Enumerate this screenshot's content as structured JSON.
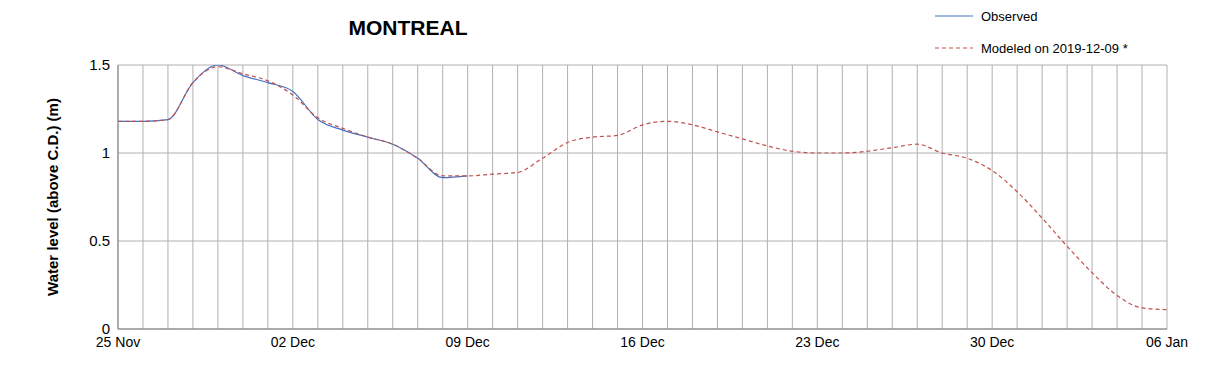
{
  "chart_data": {
    "type": "line",
    "title": "MONTREAL",
    "y_label": "Water level (above C.D.) (m)",
    "categories": [
      "25 Nov",
      null,
      null,
      null,
      null,
      null,
      null,
      "02 Dec",
      null,
      null,
      null,
      null,
      null,
      null,
      "09 Dec",
      null,
      null,
      null,
      null,
      null,
      null,
      "16 Dec",
      null,
      null,
      null,
      null,
      null,
      null,
      "23 Dec",
      null,
      null,
      null,
      null,
      null,
      null,
      "30 Dec",
      null,
      null,
      null,
      null,
      null,
      null,
      "06 Jan"
    ],
    "series": [
      {
        "name": "Observed",
        "color": "#4472c4",
        "line_style": "solid",
        "marker": "none",
        "values": [
          1.18,
          1.18,
          1.19,
          1.4,
          1.5,
          1.44,
          1.4,
          1.35,
          1.19,
          1.13,
          1.09,
          1.05,
          0.97,
          0.86,
          0.87,
          null,
          null,
          null,
          null,
          null,
          null,
          null,
          null,
          null,
          null,
          null,
          null,
          null,
          null,
          null,
          null,
          null,
          null,
          null,
          null,
          null,
          null,
          null,
          null,
          null,
          null,
          null,
          null
        ]
      },
      {
        "name": "Modeled on 2019-12-09 *",
        "color": "#c0504d",
        "line_style": "dashed",
        "marker": "none",
        "values": [
          1.18,
          1.18,
          1.19,
          1.4,
          1.49,
          1.45,
          1.41,
          1.33,
          1.2,
          1.14,
          1.09,
          1.05,
          0.97,
          0.87,
          0.87,
          0.88,
          0.89,
          0.97,
          1.06,
          1.09,
          1.1,
          1.16,
          1.18,
          1.16,
          1.12,
          1.08,
          1.04,
          1.01,
          1.0,
          1.0,
          1.01,
          1.03,
          1.05,
          1.0,
          0.97,
          0.9,
          0.78,
          0.63,
          0.47,
          0.32,
          0.19,
          0.12,
          0.11
        ]
      }
    ],
    "ylim": [
      0,
      1.5
    ],
    "yticks": [
      0,
      0.5,
      1,
      1.5
    ],
    "grid": true,
    "legend": "top-right"
  }
}
